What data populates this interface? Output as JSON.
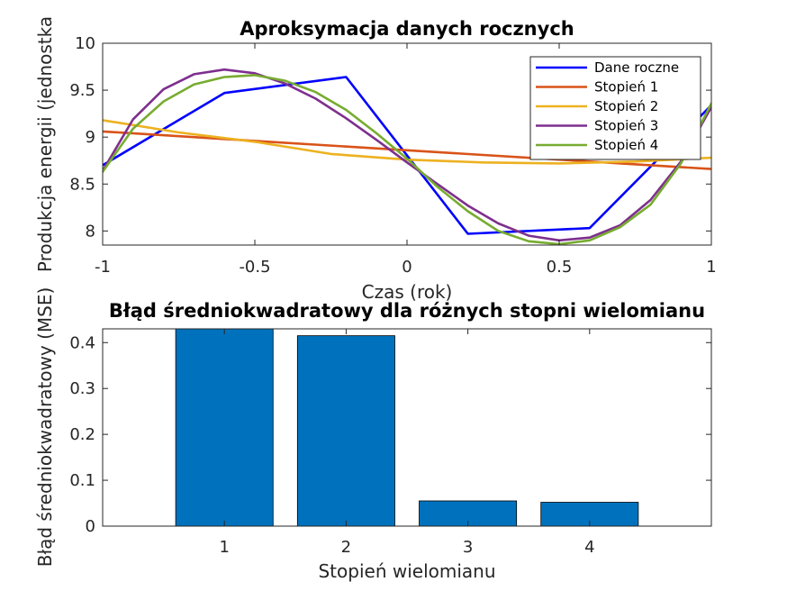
{
  "chart_data": [
    {
      "type": "line",
      "title": "Aproksymacja danych rocznych",
      "xlabel": "Czas (rok)",
      "ylabel": "Produkcja energii (jednostka",
      "xlim": [
        -1,
        1
      ],
      "ylim": [
        7.85,
        10
      ],
      "xticks": [
        -1,
        -0.5,
        0,
        0.5,
        1
      ],
      "xtick_labels": [
        "-1",
        "-0.5",
        "0",
        "0.5",
        "1"
      ],
      "yticks": [
        8,
        8.5,
        9,
        9.5,
        10
      ],
      "ytick_labels": [
        "8",
        "8.5",
        "9",
        "9.5",
        "10"
      ],
      "grid": false,
      "legend_position": "top-right",
      "series": [
        {
          "name": "Dane roczne",
          "color": "#0000ff",
          "x": [
            -1,
            -0.6,
            -0.2,
            0.2,
            0.6,
            1
          ],
          "y": [
            8.7,
            9.47,
            9.64,
            7.97,
            8.03,
            9.34
          ]
        },
        {
          "name": "Stopień 1",
          "color": "#d95319",
          "x": [
            -1,
            -0.5,
            0,
            0.5,
            1
          ],
          "y": [
            9.06,
            8.96,
            8.86,
            8.76,
            8.66
          ]
        },
        {
          "name": "Stopień 2",
          "color": "#edb120",
          "x": [
            -1,
            -0.75,
            -0.5,
            -0.25,
            0,
            0.25,
            0.5,
            0.75,
            1
          ],
          "y": [
            9.18,
            9.05,
            8.95,
            8.82,
            8.76,
            8.73,
            8.72,
            8.74,
            8.78
          ]
        },
        {
          "name": "Stopień 3",
          "color": "#7e2f8e",
          "x": [
            -1,
            -0.9,
            -0.8,
            -0.7,
            -0.6,
            -0.5,
            -0.4,
            -0.3,
            -0.2,
            -0.1,
            0,
            0.1,
            0.2,
            0.3,
            0.4,
            0.5,
            0.6,
            0.7,
            0.8,
            0.9,
            1
          ],
          "y": [
            8.64,
            9.19,
            9.51,
            9.67,
            9.72,
            9.68,
            9.57,
            9.41,
            9.2,
            8.97,
            8.73,
            8.5,
            8.27,
            8.08,
            7.95,
            7.9,
            7.93,
            8.06,
            8.33,
            8.74,
            9.32
          ]
        },
        {
          "name": "Stopień 4",
          "color": "#77ac30",
          "x": [
            -1,
            -0.9,
            -0.8,
            -0.7,
            -0.6,
            -0.5,
            -0.4,
            -0.3,
            -0.2,
            -0.1,
            0,
            0.1,
            0.2,
            0.3,
            0.4,
            0.5,
            0.6,
            0.7,
            0.8,
            0.9,
            1
          ],
          "y": [
            8.63,
            9.09,
            9.38,
            9.56,
            9.64,
            9.66,
            9.6,
            9.48,
            9.29,
            9.04,
            8.77,
            8.47,
            8.21,
            8.0,
            7.89,
            7.86,
            7.9,
            8.04,
            8.28,
            8.72,
            9.36
          ]
        }
      ]
    },
    {
      "type": "bar",
      "title": "Błąd średniokwadratowy dla różnych stopni wielomianu",
      "xlabel": "Stopień wielomianu",
      "ylabel": "Błąd średniokwadratowy (MSE)",
      "categories": [
        "1",
        "2",
        "3",
        "4"
      ],
      "values": [
        0.43,
        0.415,
        0.055,
        0.052
      ],
      "xlim": [
        0,
        5
      ],
      "ylim": [
        0,
        0.43
      ],
      "yticks": [
        0,
        0.1,
        0.2,
        0.3,
        0.4
      ],
      "ytick_labels": [
        "0",
        "0.1",
        "0.2",
        "0.3",
        "0.4"
      ],
      "bar_color": "#0072bd",
      "grid": false
    }
  ]
}
